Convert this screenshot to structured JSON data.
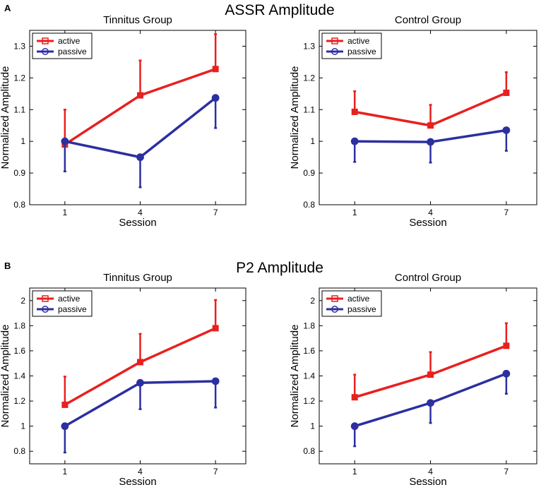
{
  "panels": [
    {
      "letter": "A",
      "title": "ASSR Amplitude"
    },
    {
      "letter": "B",
      "title": "P2 Amplitude"
    }
  ],
  "colors": {
    "active": "#e8201f",
    "passive": "#2c2fa0",
    "axis": "#000000"
  },
  "chart_data": [
    {
      "type": "line",
      "panel": "A",
      "title": "Tinnitus Group",
      "xlabel": "Session",
      "ylabel": "Normalized Amplitude",
      "categories": [
        "1",
        "4",
        "7"
      ],
      "ylim": [
        0.8,
        1.35
      ],
      "yticks": [
        0.8,
        0.9,
        1,
        1.1,
        1.2,
        1.3
      ],
      "ytick_labels": [
        "0.8",
        "0.9",
        "1",
        "1.1",
        "1.2",
        "1.3"
      ],
      "legend": "top-left",
      "series": [
        {
          "name": "active",
          "values": [
            0.99,
            1.145,
            1.228
          ],
          "err": [
            0.11,
            0.11,
            0.11
          ]
        },
        {
          "name": "passive",
          "values": [
            1.0,
            0.95,
            1.137
          ],
          "err": [
            0.095,
            0.095,
            0.095
          ]
        }
      ]
    },
    {
      "type": "line",
      "panel": "A",
      "title": "Control Group",
      "xlabel": "Session",
      "ylabel": "Normalized Amplitude",
      "categories": [
        "1",
        "4",
        "7"
      ],
      "ylim": [
        0.8,
        1.35
      ],
      "yticks": [
        0.8,
        0.9,
        1,
        1.1,
        1.2,
        1.3
      ],
      "ytick_labels": [
        "0.8",
        "0.9",
        "1",
        "1.1",
        "1.2",
        "1.3"
      ],
      "legend": "top-left",
      "series": [
        {
          "name": "active",
          "values": [
            1.093,
            1.05,
            1.153
          ],
          "err": [
            0.065,
            0.065,
            0.065
          ]
        },
        {
          "name": "passive",
          "values": [
            1.0,
            0.998,
            1.035
          ],
          "err": [
            0.065,
            0.065,
            0.065
          ]
        }
      ]
    },
    {
      "type": "line",
      "panel": "B",
      "title": "Tinnitus Group",
      "xlabel": "Session",
      "ylabel": "Normalized Amplitude",
      "categories": [
        "1",
        "4",
        "7"
      ],
      "ylim": [
        0.7,
        2.1
      ],
      "yticks": [
        0.8,
        1,
        1.2,
        1.4,
        1.6,
        1.8,
        2
      ],
      "ytick_labels": [
        "0.8",
        "1",
        "1.2",
        "1.4",
        "1.6",
        "1.8",
        "2"
      ],
      "legend": "top-left",
      "series": [
        {
          "name": "active",
          "values": [
            1.17,
            1.51,
            1.78
          ],
          "err": [
            0.225,
            0.225,
            0.225
          ]
        },
        {
          "name": "passive",
          "values": [
            1.0,
            1.345,
            1.358
          ],
          "err": [
            0.21,
            0.21,
            0.21
          ]
        }
      ]
    },
    {
      "type": "line",
      "panel": "B",
      "title": "Control Group",
      "xlabel": "Session",
      "ylabel": "Normalized Amplitude",
      "categories": [
        "1",
        "4",
        "7"
      ],
      "ylim": [
        0.7,
        2.1
      ],
      "yticks": [
        0.8,
        1,
        1.2,
        1.4,
        1.6,
        1.8,
        2
      ],
      "ytick_labels": [
        "0.8",
        "1",
        "1.2",
        "1.4",
        "1.6",
        "1.8",
        "2"
      ],
      "legend": "top-left",
      "series": [
        {
          "name": "active",
          "values": [
            1.23,
            1.41,
            1.64
          ],
          "err": [
            0.18,
            0.18,
            0.18
          ]
        },
        {
          "name": "passive",
          "values": [
            1.0,
            1.185,
            1.418
          ],
          "err": [
            0.16,
            0.16,
            0.16
          ]
        }
      ]
    }
  ]
}
